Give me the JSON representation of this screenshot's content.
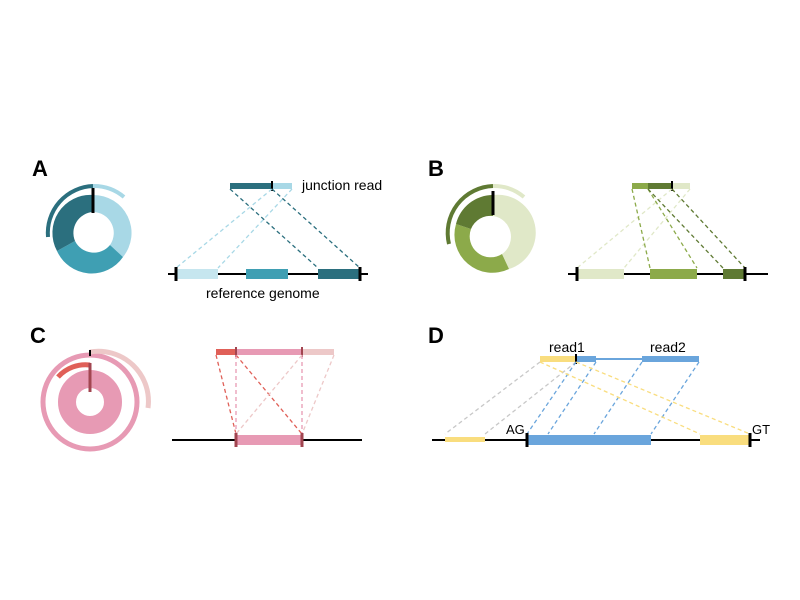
{
  "panels": {
    "a": {
      "letter": "A",
      "junction_label": "junction read",
      "reference_label": "reference genome"
    },
    "b": {
      "letter": "B"
    },
    "c": {
      "letter": "C"
    },
    "d": {
      "letter": "D",
      "read1_label": "read1",
      "read2_label": "read2",
      "acceptor_label": "AG",
      "donor_label": "GT"
    }
  },
  "colors": {
    "teal_light": "#a8d8e6",
    "teal_mid": "#3f9fb3",
    "teal_dark": "#2b6f7e",
    "green_light": "#e0e8c8",
    "green_mid": "#8caa4a",
    "green_dark": "#5f7a33",
    "pink_light": "#edc8c8",
    "pink_mid": "#e79ab4",
    "pink_red": "#e06058",
    "blue": "#6aa5dc",
    "yellow": "#f9dd7e",
    "grey": "#c8c8c8",
    "line": "#000000"
  }
}
